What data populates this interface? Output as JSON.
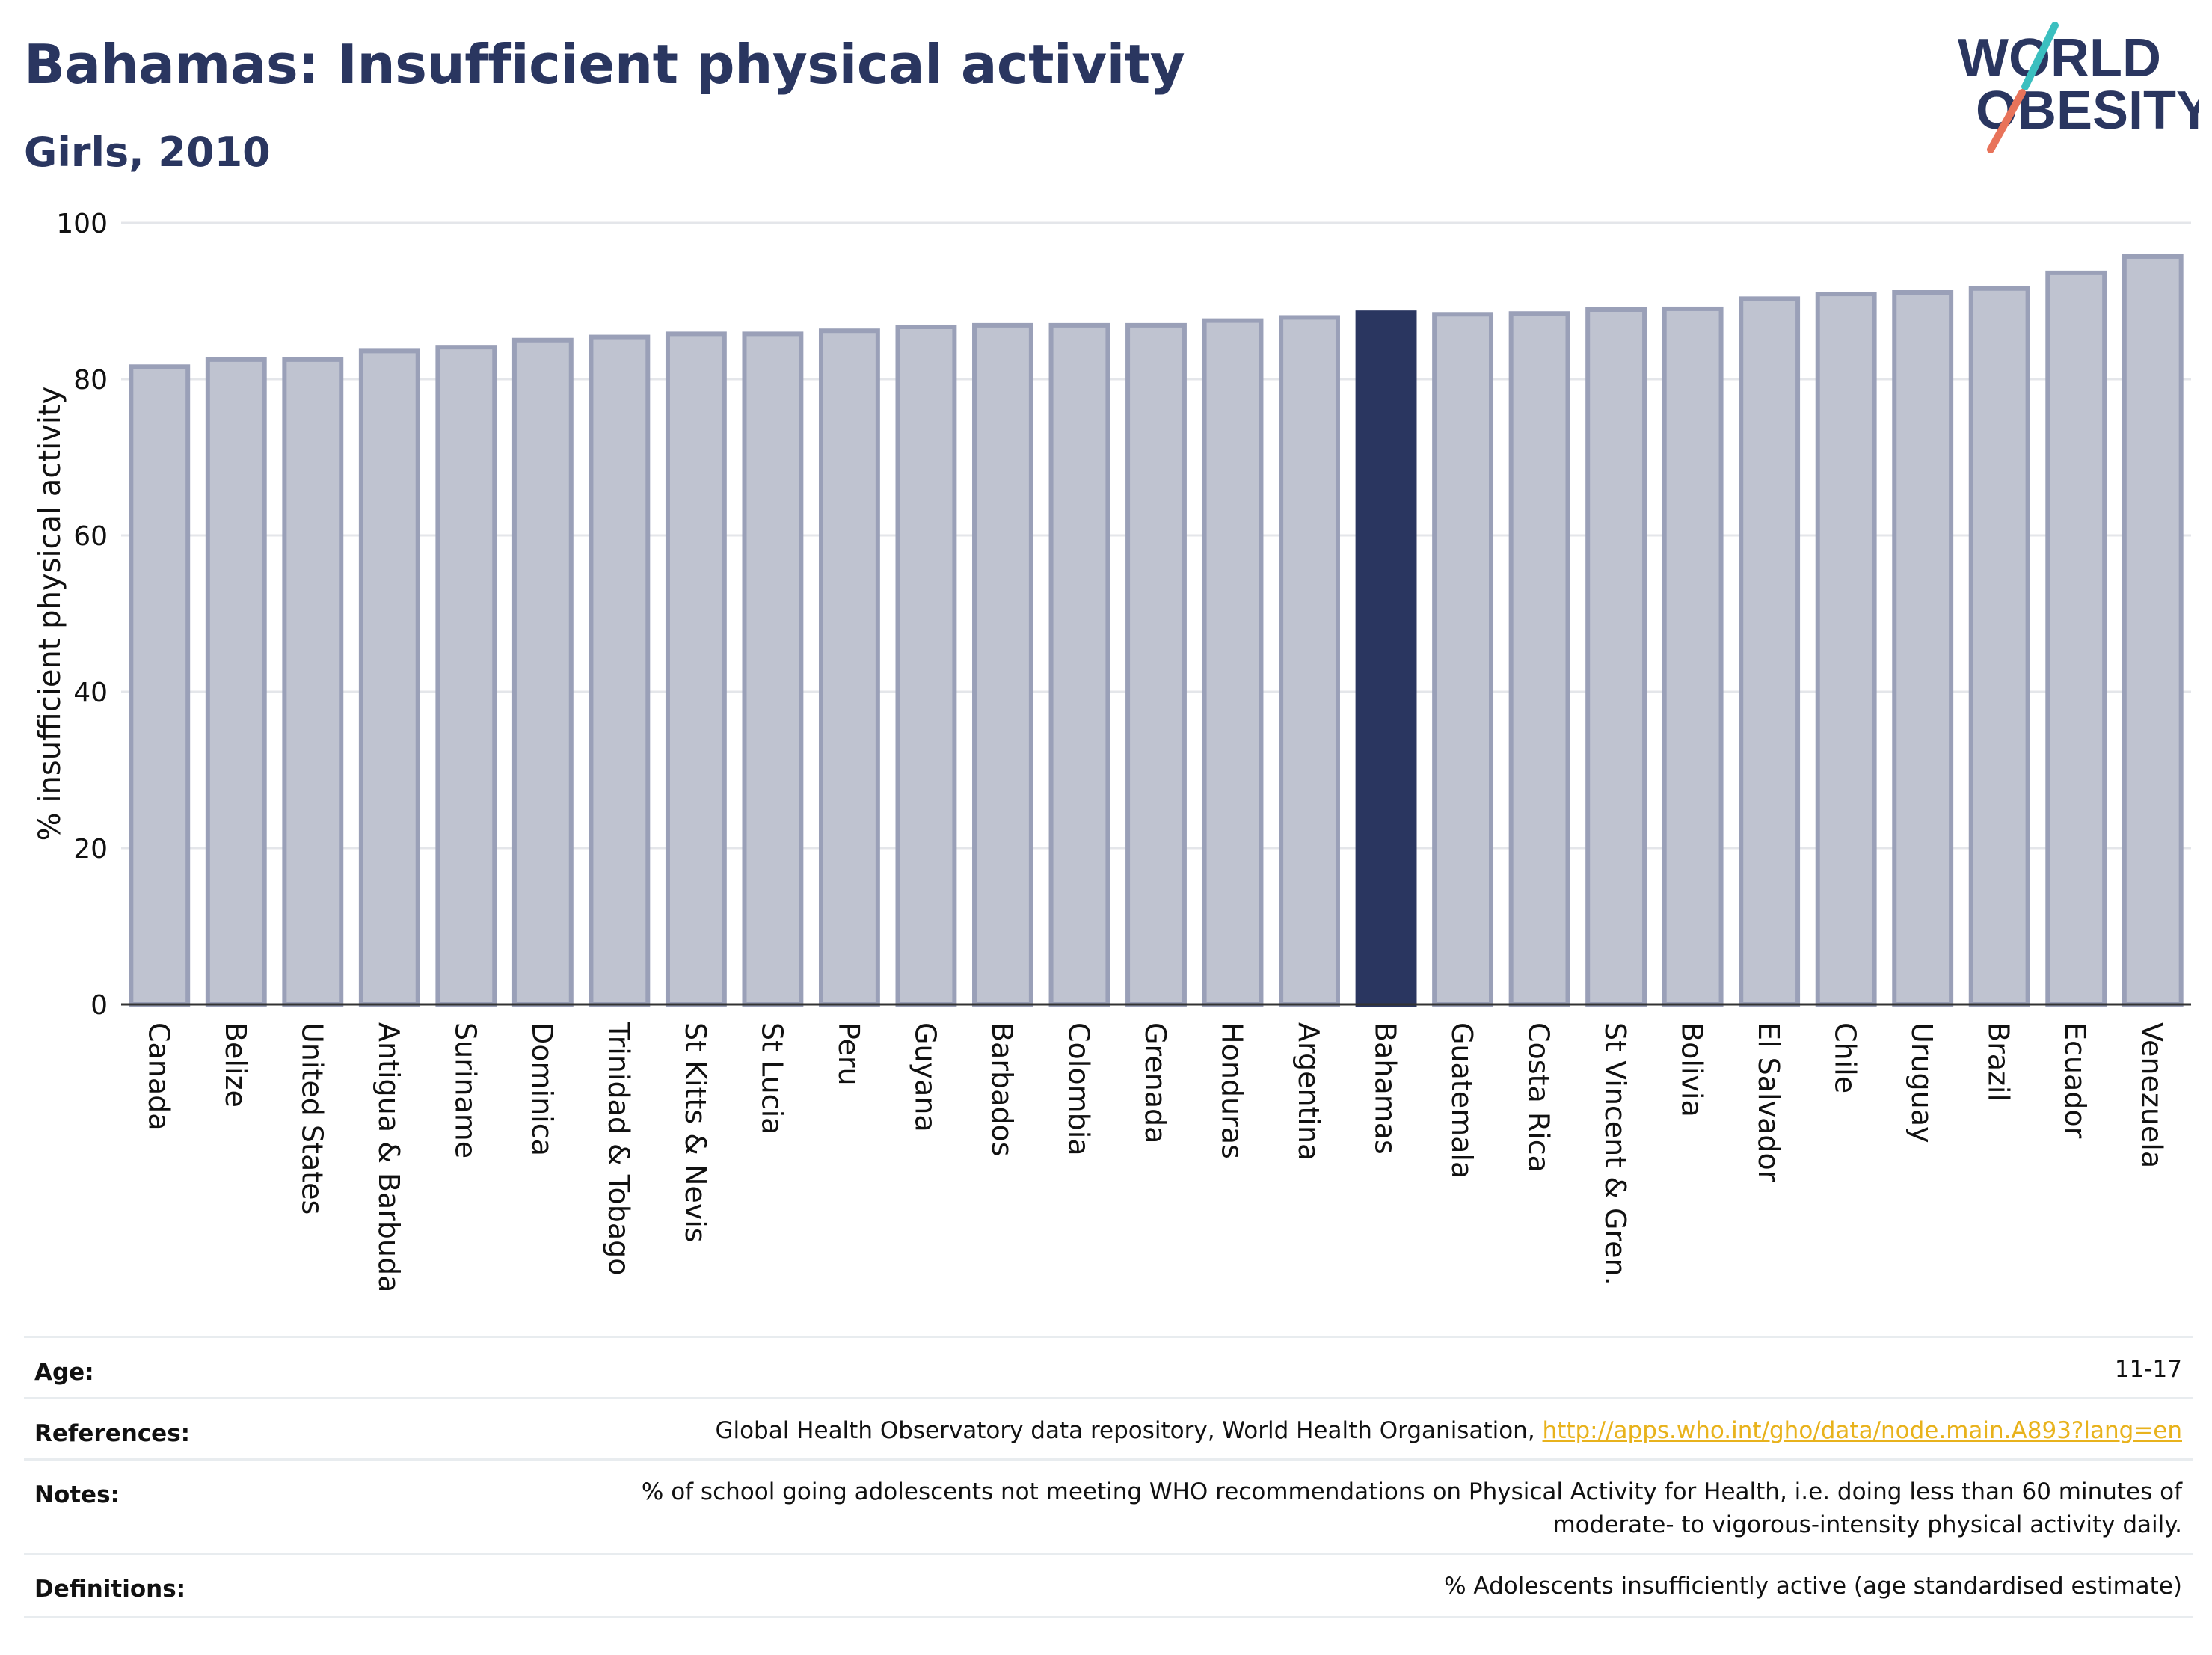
{
  "header": {
    "title": "Bahamas: Insufficient physical activity",
    "subtitle": "Girls, 2010"
  },
  "logo": {
    "line1": "WORLD",
    "line2": "OBESITY",
    "colors": {
      "text": "#2a3660",
      "slash_teal": "#3bbfbf",
      "slash_coral": "#e8735a"
    }
  },
  "chart_data": {
    "type": "bar",
    "title": "Bahamas: Insufficient physical activity",
    "subtitle": "Girls, 2010",
    "xlabel": "",
    "ylabel": "% insufficient physical activity",
    "ylim": [
      0,
      100
    ],
    "yticks": [
      0,
      20,
      40,
      60,
      80,
      100
    ],
    "grid": true,
    "highlight": "Bahamas",
    "colors": {
      "bar": "#bfc3d0",
      "bar_edge": "#9aa0b8",
      "highlight": "#2a3660"
    },
    "categories": [
      "Canada",
      "Belize",
      "United States",
      "Antigua & Barbuda",
      "Suriname",
      "Dominica",
      "Trinidad & Tobago",
      "St Kitts & Nevis",
      "St Lucia",
      "Peru",
      "Guyana",
      "Barbados",
      "Colombia",
      "Grenada",
      "Honduras",
      "Argentina",
      "Bahamas",
      "Guatemala",
      "Costa Rica",
      "St Vincent & Gren.",
      "Bolivia",
      "El Salvador",
      "Chile",
      "Uruguay",
      "Brazil",
      "Ecuador",
      "Venezuela"
    ],
    "values": [
      81.6,
      82.5,
      82.5,
      83.6,
      84.1,
      85.0,
      85.4,
      85.8,
      85.8,
      86.2,
      86.7,
      86.9,
      86.9,
      86.9,
      87.5,
      87.9,
      88.5,
      88.3,
      88.4,
      88.9,
      89.0,
      90.3,
      90.9,
      91.1,
      91.6,
      93.6,
      95.7
    ]
  },
  "meta": {
    "age": {
      "label": "Age:",
      "value": "11-17"
    },
    "references": {
      "label": "References:",
      "text": "Global Health Observatory data repository, World Health Organisation, ",
      "link": "http://apps.who.int/gho/data/node.main.A893?lang=en"
    },
    "notes": {
      "label": "Notes:",
      "line1": "% of school going adolescents not meeting WHO recommendations on Physical Activity for Health, i.e. doing less than 60 minutes of",
      "line2": "moderate- to vigorous-intensity physical activity daily."
    },
    "definitions": {
      "label": "Definitions:",
      "value": "% Adolescents insufficiently active (age standardised estimate)"
    }
  }
}
